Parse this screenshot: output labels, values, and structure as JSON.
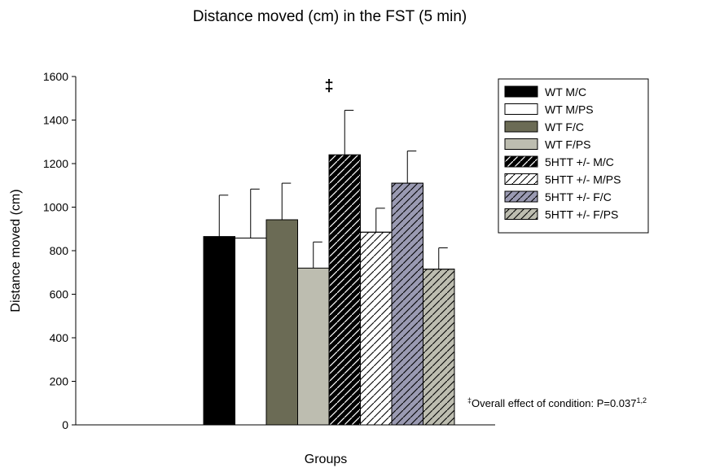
{
  "chart_data": {
    "type": "bar",
    "title": "Distance moved (cm) in the FST (5 min)",
    "xlabel": "Groups",
    "ylabel": "Distance moved (cm)",
    "ylim": [
      0,
      1600
    ],
    "yticks": [
      0,
      200,
      400,
      600,
      800,
      1000,
      1200,
      1400,
      1600
    ],
    "grid": false,
    "legend_position": "top-right",
    "series": [
      {
        "name": "WT M/C",
        "value": 865,
        "error": 190,
        "fill": "#000000",
        "hatch": false
      },
      {
        "name": "WT M/PS",
        "value": 858,
        "error": 225,
        "fill": "#ffffff",
        "hatch": false
      },
      {
        "name": "WT F/C",
        "value": 942,
        "error": 168,
        "fill": "#6b6b55",
        "hatch": false
      },
      {
        "name": "WT F/PS",
        "value": 720,
        "error": 120,
        "fill": "#bdbdb0",
        "hatch": false
      },
      {
        "name": "5HTT +/- M/C",
        "value": 1240,
        "error": 205,
        "fill": "#000000",
        "hatch": true,
        "hatch_color": "#ffffff"
      },
      {
        "name": "5HTT +/- M/PS",
        "value": 885,
        "error": 110,
        "fill": "#ffffff",
        "hatch": true,
        "hatch_color": "#000000"
      },
      {
        "name": "5HTT +/- F/C",
        "value": 1110,
        "error": 148,
        "fill": "#9a9ab2",
        "hatch": true,
        "hatch_color": "#000000"
      },
      {
        "name": "5HTT +/- F/PS",
        "value": 715,
        "error": 98,
        "fill": "#bdbdb0",
        "hatch": true,
        "hatch_color": "#000000"
      }
    ],
    "annotations": {
      "marker": "‡",
      "marker_series": "5HTT +/- M/C",
      "footnote_prefix": "‡",
      "footnote_text": "Overall effect of condition: P=0.037",
      "footnote_sup": "1,2"
    }
  }
}
